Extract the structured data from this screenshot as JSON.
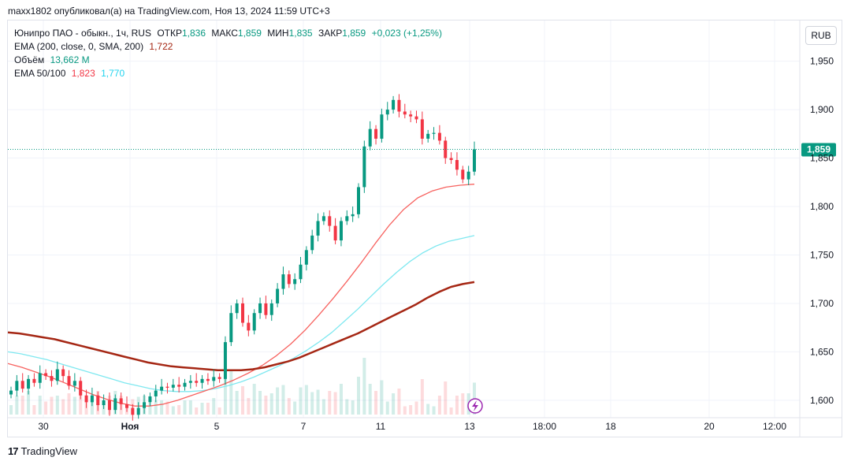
{
  "header": {
    "text": "maxx1802 опубликовал(а) на TradingView.com, Ноя 13, 2024 11:59 UTC+3"
  },
  "legend": {
    "symbol": "Юнипро ПАО - обыкн., 1ч, RUS",
    "open_label": "ОТКР",
    "open": "1,836",
    "high_label": "МАКС",
    "high": "1,859",
    "low_label": "МИН",
    "low": "1,835",
    "close_label": "ЗАКР",
    "close": "1,859",
    "change": "+0,023 (+1,25%)",
    "ema200_label": "EMA (200, close, 0, SMA, 200)",
    "ema200_value": "1,722",
    "volume_label": "Объём",
    "volume_value": "13,662 M",
    "ema50_100_label": "EMA 50/100",
    "ema50_value": "1,823",
    "ema100_value": "1,770"
  },
  "currency_button": "RUB",
  "footer": {
    "brand": "TradingView",
    "logo_glyph": "17"
  },
  "colors": {
    "up": "#089981",
    "down": "#f23645",
    "ema200": "#a52714",
    "ema50": "#f7625f",
    "ema100": "#7fe8f0",
    "last_price_bg": "#089981"
  },
  "icons": {
    "lightning": "lightning-icon"
  },
  "chart_data": {
    "type": "candlestick",
    "symbol": "Юнипро ПАО - обыкн.",
    "timeframe": "1ч",
    "y_axis_ticks": [
      "1,950",
      "1,900",
      "1,850",
      "1,800",
      "1,750",
      "1,700",
      "1,650",
      "1,600"
    ],
    "y_axis_values": [
      1.95,
      1.9,
      1.85,
      1.8,
      1.75,
      1.7,
      1.65,
      1.6
    ],
    "ylim": [
      1.582,
      1.992
    ],
    "x_axis_ticks": [
      "30",
      "Ноя",
      "5",
      "7",
      "11",
      "13",
      "18:00",
      "18",
      "20",
      "12:00"
    ],
    "last_price": 1.859,
    "last_price_label": "1,859",
    "series_close": [
      1.61,
      1.62,
      1.612,
      1.622,
      1.618,
      1.628,
      1.625,
      1.62,
      1.632,
      1.625,
      1.615,
      1.62,
      1.605,
      1.598,
      1.605,
      1.595,
      1.6,
      1.59,
      1.602,
      1.596,
      1.592,
      1.585,
      1.592,
      1.598,
      1.604,
      1.61,
      1.614,
      1.613,
      1.616,
      1.614,
      1.618,
      1.62,
      1.618,
      1.622,
      1.62,
      1.624,
      1.622,
      1.66,
      1.69,
      1.7,
      1.68,
      1.672,
      1.69,
      1.7,
      1.688,
      1.7,
      1.715,
      1.73,
      1.72,
      1.725,
      1.74,
      1.755,
      1.77,
      1.785,
      1.79,
      1.78,
      1.765,
      1.785,
      1.79,
      1.792,
      1.82,
      1.862,
      1.88,
      1.87,
      1.895,
      1.9,
      1.91,
      1.898,
      1.895,
      1.893,
      1.89,
      1.87,
      1.875,
      1.876,
      1.868,
      1.85,
      1.848,
      1.838,
      1.828,
      1.836,
      1.859
    ],
    "ema200": [
      1.67,
      1.669,
      1.667,
      1.665,
      1.663,
      1.66,
      1.657,
      1.654,
      1.651,
      1.648,
      1.645,
      1.642,
      1.639,
      1.637,
      1.635,
      1.634,
      1.633,
      1.632,
      1.631,
      1.631,
      1.631,
      1.632,
      1.634,
      1.637,
      1.64,
      1.644,
      1.649,
      1.654,
      1.659,
      1.664,
      1.669,
      1.675,
      1.681,
      1.687,
      1.693,
      1.699,
      1.706,
      1.712,
      1.717,
      1.72,
      1.722
    ],
    "ema100": [
      1.65,
      1.648,
      1.645,
      1.642,
      1.638,
      1.634,
      1.63,
      1.626,
      1.622,
      1.618,
      1.615,
      1.612,
      1.61,
      1.609,
      1.609,
      1.61,
      1.612,
      1.615,
      1.619,
      1.624,
      1.63,
      1.636,
      1.643,
      1.651,
      1.66,
      1.67,
      1.682,
      1.694,
      1.707,
      1.72,
      1.732,
      1.743,
      1.752,
      1.759,
      1.764,
      1.767,
      1.77
    ],
    "ema50": [
      1.638,
      1.634,
      1.629,
      1.624,
      1.618,
      1.612,
      1.606,
      1.601,
      1.597,
      1.594,
      1.594,
      1.596,
      1.6,
      1.605,
      1.61,
      1.615,
      1.621,
      1.628,
      1.636,
      1.646,
      1.658,
      1.672,
      1.688,
      1.705,
      1.723,
      1.742,
      1.762,
      1.781,
      1.797,
      1.809,
      1.816,
      1.82,
      1.822,
      1.823
    ]
  }
}
